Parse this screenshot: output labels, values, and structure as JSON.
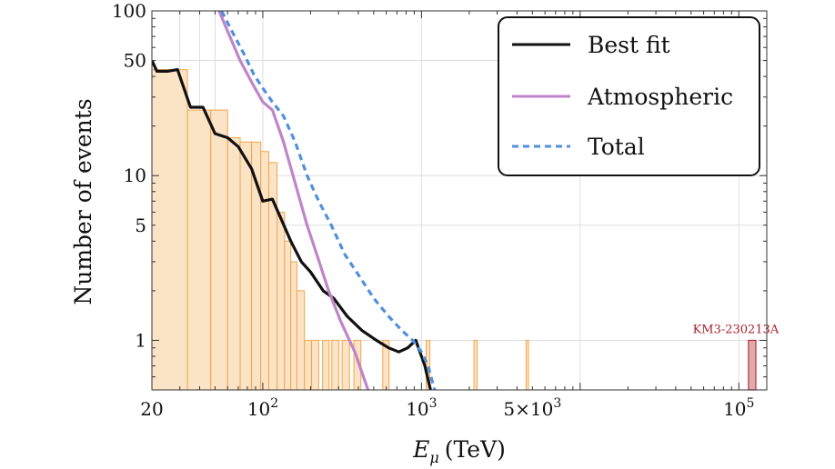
{
  "chart_data": {
    "type": "histogram",
    "title": "",
    "xlabel": "E",
    "xlabel_sub": "μ",
    "xlabel_unit": "(TeV)",
    "ylabel": "Number of events",
    "xscale": "log",
    "yscale": "log",
    "xlim": [
      20,
      150000
    ],
    "ylim": [
      0.5,
      100
    ],
    "grid": true,
    "x_ticks": [
      {
        "value": 20,
        "label": "20",
        "sup": ""
      },
      {
        "value": 100,
        "label": "10",
        "sup": "2"
      },
      {
        "value": 1000,
        "label": "10",
        "sup": "3"
      },
      {
        "value": 5000,
        "label": "5×10",
        "sup": "3"
      },
      {
        "value": 100000,
        "label": "10",
        "sup": "5"
      }
    ],
    "y_ticks": [
      {
        "value": 1,
        "label": "1"
      },
      {
        "value": 5,
        "label": "5"
      },
      {
        "value": 10,
        "label": "10"
      },
      {
        "value": 50,
        "label": "50"
      },
      {
        "value": 100,
        "label": "100"
      }
    ],
    "histogram": {
      "fill": "#fbe3c6",
      "edge": "#f5a54a",
      "bins": [
        {
          "x0": 20,
          "x1": 33.5,
          "count": 44
        },
        {
          "x0": 33.5,
          "x1": 47,
          "count": 25
        },
        {
          "x0": 47,
          "x1": 60,
          "count": 25
        },
        {
          "x0": 60,
          "x1": 72,
          "count": 17
        },
        {
          "x0": 72,
          "x1": 85,
          "count": 16
        },
        {
          "x0": 85,
          "x1": 97,
          "count": 16
        },
        {
          "x0": 97,
          "x1": 109,
          "count": 14
        },
        {
          "x0": 109,
          "x1": 123,
          "count": 12
        },
        {
          "x0": 123,
          "x1": 137,
          "count": 6
        },
        {
          "x0": 137,
          "x1": 150,
          "count": 4
        },
        {
          "x0": 150,
          "x1": 164,
          "count": 3
        },
        {
          "x0": 164,
          "x1": 183,
          "count": 2
        },
        {
          "x0": 183,
          "x1": 203,
          "count": 1
        },
        {
          "x0": 203,
          "x1": 225,
          "count": 1
        },
        {
          "x0": 238,
          "x1": 262,
          "count": 1
        },
        {
          "x0": 272,
          "x1": 302,
          "count": 1
        },
        {
          "x0": 316,
          "x1": 352,
          "count": 1
        },
        {
          "x0": 375,
          "x1": 415,
          "count": 1
        },
        {
          "x0": 570,
          "x1": 625,
          "count": 1
        },
        {
          "x0": 1070,
          "x1": 1130,
          "count": 1
        },
        {
          "x0": 2140,
          "x1": 2240,
          "count": 1
        },
        {
          "x0": 4560,
          "x1": 4720,
          "count": 1
        }
      ]
    },
    "event": {
      "label": "KM3-230213A",
      "x0": 115000,
      "x1": 128000,
      "count": 1,
      "fill": "#e2a9ad",
      "edge": "#b1303f",
      "label_color": "#a8202e"
    },
    "series": [
      {
        "name": "Best fit",
        "color": "#111111",
        "dash": "",
        "points": [
          [
            20,
            50
          ],
          [
            21.5,
            43
          ],
          [
            25,
            43
          ],
          [
            29,
            44
          ],
          [
            35,
            26
          ],
          [
            42,
            26
          ],
          [
            50,
            18
          ],
          [
            60,
            17
          ],
          [
            70,
            15
          ],
          [
            85,
            11
          ],
          [
            100,
            7
          ],
          [
            115,
            7.2
          ],
          [
            130,
            5.5
          ],
          [
            150,
            4
          ],
          [
            175,
            3
          ],
          [
            200,
            2.6
          ],
          [
            240,
            2
          ],
          [
            280,
            1.8
          ],
          [
            340,
            1.4
          ],
          [
            420,
            1.15
          ],
          [
            520,
            1.0
          ],
          [
            620,
            0.9
          ],
          [
            720,
            0.85
          ],
          [
            820,
            0.9
          ],
          [
            920,
            1.0
          ],
          [
            1050,
            0.7
          ],
          [
            1140,
            0.5
          ]
        ]
      },
      {
        "name": "Atmospheric",
        "color": "#c084c9",
        "dash": "",
        "points": [
          [
            53,
            100
          ],
          [
            62,
            70
          ],
          [
            72,
            50
          ],
          [
            85,
            37
          ],
          [
            100,
            28
          ],
          [
            115,
            25
          ],
          [
            135,
            16
          ],
          [
            160,
            9
          ],
          [
            190,
            5
          ],
          [
            215,
            3.5
          ],
          [
            260,
            2
          ],
          [
            310,
            1.3
          ],
          [
            380,
            0.85
          ],
          [
            460,
            0.5
          ]
        ]
      },
      {
        "name": "Total",
        "color": "#5190de",
        "dash": "7,5",
        "points": [
          [
            55,
            100
          ],
          [
            65,
            73
          ],
          [
            76,
            55
          ],
          [
            88,
            41
          ],
          [
            100,
            34
          ],
          [
            115,
            28
          ],
          [
            135,
            23
          ],
          [
            160,
            16
          ],
          [
            190,
            10
          ],
          [
            225,
            7
          ],
          [
            270,
            5
          ],
          [
            330,
            3.3
          ],
          [
            400,
            2.5
          ],
          [
            500,
            1.8
          ],
          [
            620,
            1.4
          ],
          [
            750,
            1.15
          ],
          [
            880,
            1.0
          ],
          [
            1000,
            0.85
          ],
          [
            1100,
            0.7
          ],
          [
            1210,
            0.5
          ]
        ]
      }
    ],
    "legend": {
      "placement": "top-right",
      "entries": [
        "Best fit",
        "Atmospheric",
        "Total"
      ]
    }
  }
}
